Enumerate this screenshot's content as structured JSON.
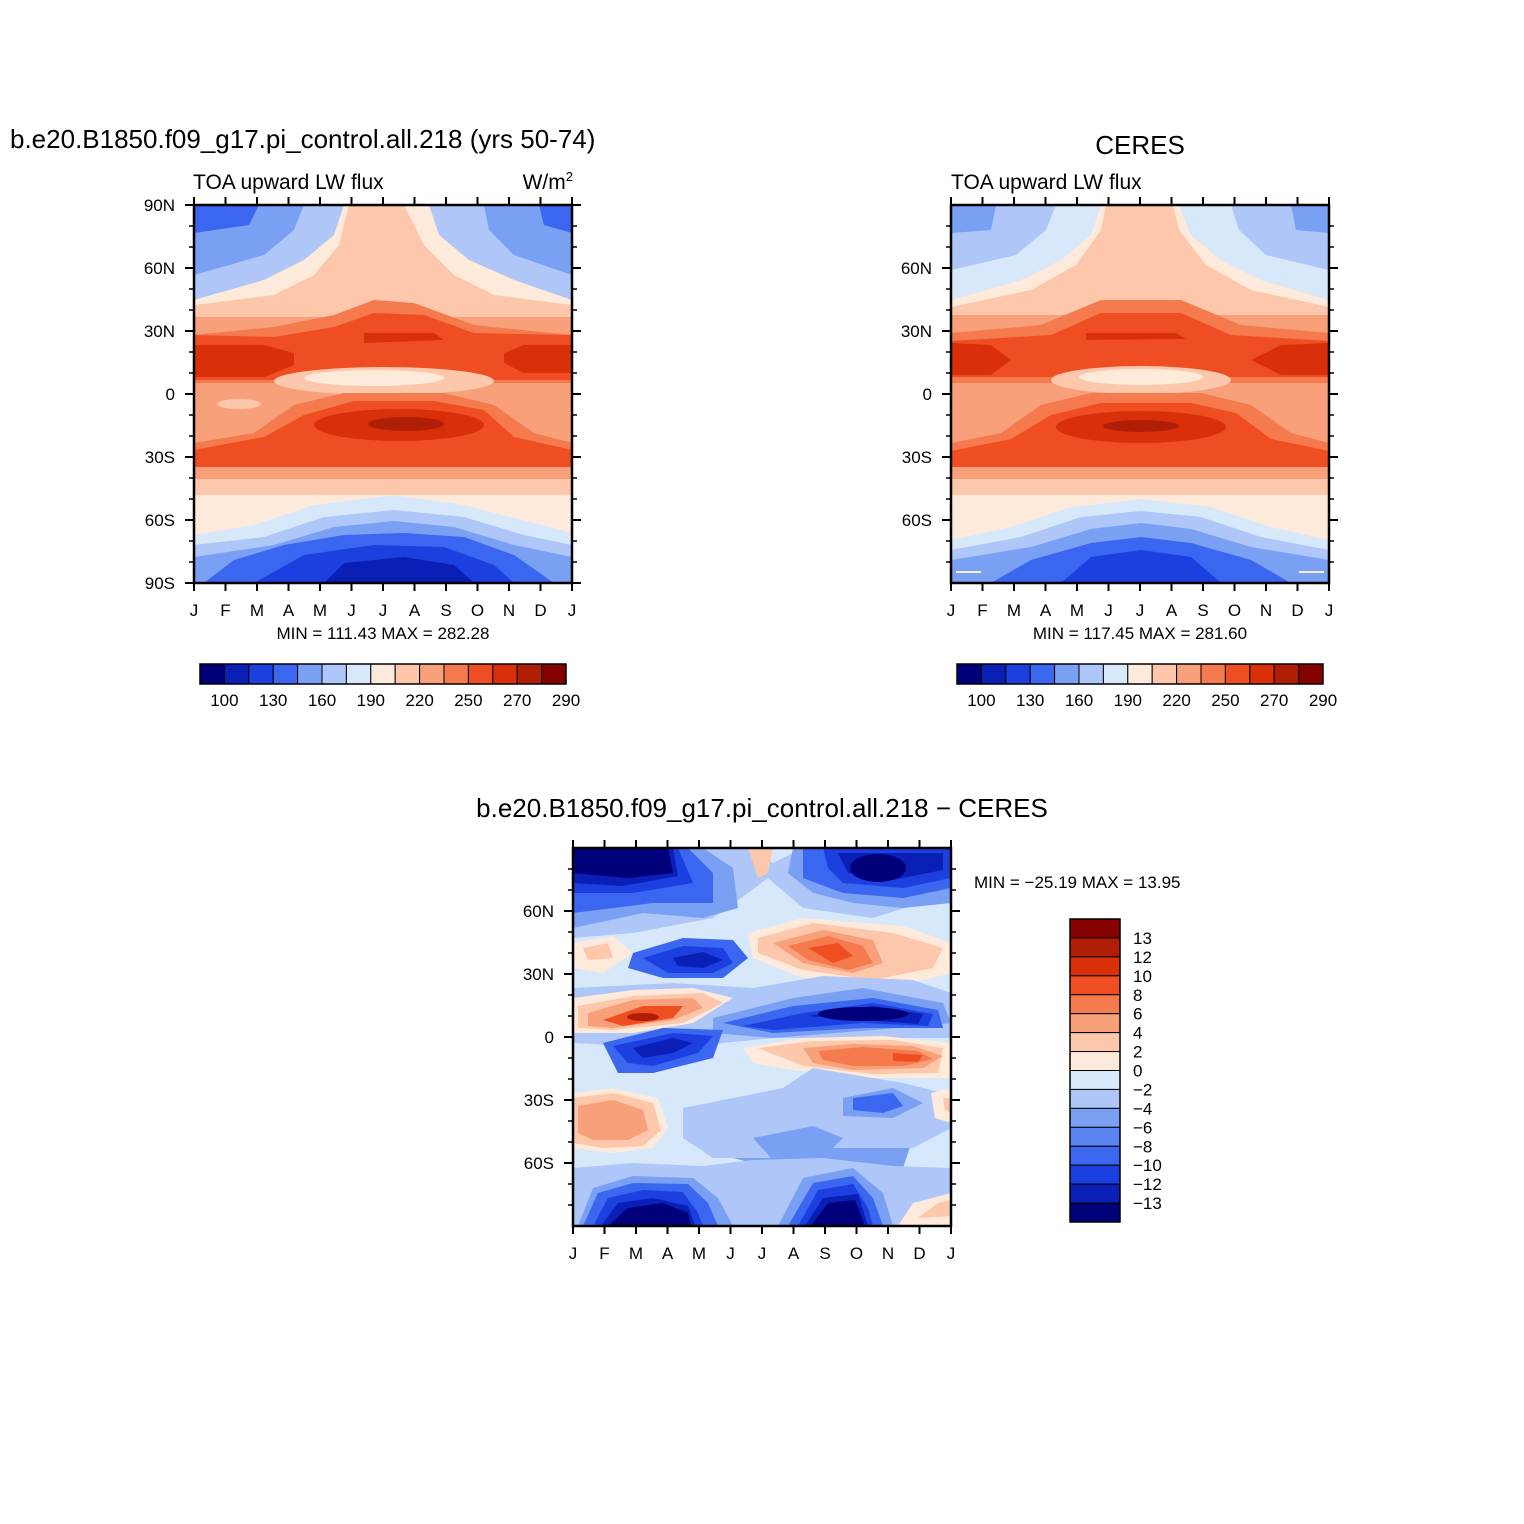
{
  "chart_data": [
    {
      "type": "heatmap",
      "title": "b.e20.B1850.f09_g17.pi_control.all.218 (yrs 50-74)",
      "subtitle_left": "TOA upward LW flux",
      "subtitle_right": "W/m",
      "units_superscript": "2",
      "x_ticks": [
        "J",
        "F",
        "M",
        "A",
        "M",
        "J",
        "J",
        "A",
        "S",
        "O",
        "N",
        "D",
        "J"
      ],
      "y_ticks": [
        "90N",
        "60N",
        "30N",
        "0",
        "30S",
        "60S",
        "90S"
      ],
      "min_text": "MIN =  111.43 MAX =  282.28",
      "z_min": 111.43,
      "z_max": 282.28,
      "colorbar_labels": [
        "100",
        "130",
        "160",
        "190",
        "220",
        "250",
        "270",
        "290"
      ],
      "palette": "lw"
    },
    {
      "type": "heatmap",
      "title": "CERES",
      "subtitle_left": "TOA upward LW flux",
      "x_ticks": [
        "J",
        "F",
        "M",
        "A",
        "M",
        "J",
        "J",
        "A",
        "S",
        "O",
        "N",
        "D",
        "J"
      ],
      "y_ticks": [
        "60N",
        "30N",
        "0",
        "30S",
        "60S"
      ],
      "min_text": "MIN =  117.45 MAX =  281.60",
      "z_min": 117.45,
      "z_max": 281.6,
      "colorbar_labels": [
        "100",
        "130",
        "160",
        "190",
        "220",
        "250",
        "270",
        "290"
      ],
      "palette": "lw"
    },
    {
      "type": "heatmap",
      "title": "b.e20.B1850.f09_g17.pi_control.all.218 − CERES",
      "x_ticks": [
        "J",
        "F",
        "M",
        "A",
        "M",
        "J",
        "J",
        "A",
        "S",
        "O",
        "N",
        "D",
        "J"
      ],
      "y_ticks": [
        "60N",
        "30N",
        "0",
        "30S",
        "60S"
      ],
      "min_text": "MIN = −25.19 MAX =   13.95",
      "z_min": -25.19,
      "z_max": 13.95,
      "colorbar_labels": [
        "13",
        "12",
        "10",
        "8",
        "6",
        "4",
        "2",
        "0",
        "−2",
        "−4",
        "−6",
        "−8",
        "−10",
        "−12",
        "−13"
      ],
      "palette": "diff"
    }
  ],
  "colors": {
    "lw_palette": [
      "#00007a",
      "#0a1fb5",
      "#1c3fe0",
      "#3a66f0",
      "#7aa0f4",
      "#aec6f8",
      "#d8e8fb",
      "#fdeadb",
      "#fcc7aa",
      "#f8a07a",
      "#f57a4e",
      "#ef4e22",
      "#d9300a",
      "#b01f05",
      "#870000"
    ],
    "diff_palette": [
      "#00007a",
      "#0a1fb5",
      "#1c3fe0",
      "#3a66f0",
      "#5a85f2",
      "#7aa0f4",
      "#aec6f8",
      "#d8e8fb",
      "#fdeadb",
      "#fcc7aa",
      "#f8a07a",
      "#f57a4e",
      "#ef4e22",
      "#d9300a",
      "#b01f05",
      "#870000"
    ]
  }
}
